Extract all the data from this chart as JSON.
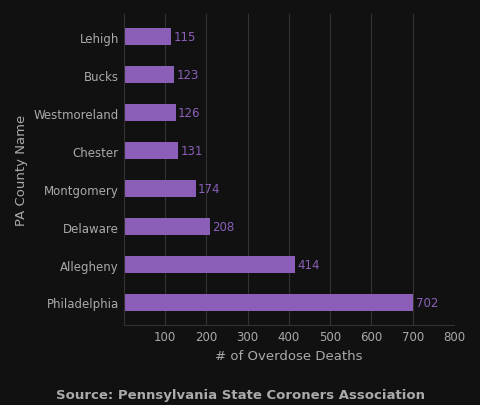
{
  "counties": [
    "Philadelphia",
    "Allegheny",
    "Delaware",
    "Montgomery",
    "Chester",
    "Westmoreland",
    "Bucks",
    "Lehigh"
  ],
  "values": [
    702,
    414,
    208,
    174,
    131,
    126,
    123,
    115
  ],
  "bar_color": "#8b5fb8",
  "label_color": "#8b5fb8",
  "xlabel": "# of Overdose Deaths",
  "ylabel": "PA County Name",
  "xlim": [
    0,
    800
  ],
  "xticks": [
    100,
    200,
    300,
    400,
    500,
    600,
    700,
    800
  ],
  "source_text": "Source: Pennsylvania State Coroners Association",
  "background_color": "#111111",
  "plot_bg_color": "#111111",
  "text_color": "#aaaaaa",
  "grid_color": "#333333",
  "bar_height": 0.45,
  "label_fontsize": 8.5,
  "axis_label_fontsize": 9.5,
  "tick_fontsize": 8.5,
  "source_fontsize": 9.5
}
